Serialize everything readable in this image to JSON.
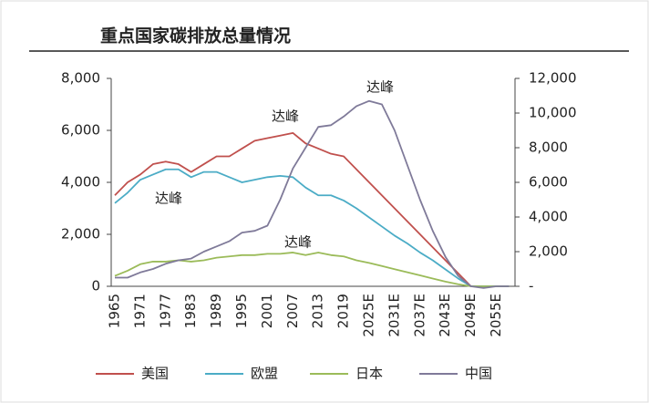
{
  "chart_data": {
    "type": "line",
    "title": "重点国家碳排放总量情况",
    "categories": [
      "1965",
      null,
      "1971",
      null,
      "1977",
      null,
      "1983",
      null,
      "1989",
      null,
      "1995",
      null,
      "2001",
      null,
      "2007",
      null,
      "2013",
      null,
      "2019",
      null,
      "2025E",
      null,
      "2031E",
      null,
      "2037E",
      null,
      "2043E",
      null,
      "2049E",
      null,
      "2055E",
      null
    ],
    "series": [
      {
        "name": "美国",
        "color": "#c0504d",
        "values": [
          3500,
          4000,
          4300,
          4700,
          4800,
          4700,
          4400,
          4700,
          5000,
          5000,
          5300,
          5600,
          5700,
          5800,
          5900,
          5500,
          5300,
          5100,
          5000,
          4500,
          4000,
          3500,
          3000,
          2500,
          2000,
          1500,
          1000,
          500,
          0,
          0,
          0,
          0
        ]
      },
      {
        "name": "欧盟",
        "color": "#4bacc6",
        "values": [
          3200,
          3600,
          4100,
          4300,
          4500,
          4500,
          4200,
          4400,
          4400,
          4200,
          4000,
          4100,
          4200,
          4250,
          4200,
          3800,
          3500,
          3500,
          3300,
          3000,
          2650,
          2300,
          1950,
          1650,
          1300,
          1000,
          650,
          300,
          0,
          0,
          0,
          0
        ]
      },
      {
        "name": "日本",
        "color": "#9bbb59",
        "values": [
          400,
          600,
          850,
          950,
          950,
          1000,
          950,
          1000,
          1100,
          1150,
          1200,
          1200,
          1250,
          1250,
          1300,
          1200,
          1300,
          1200,
          1150,
          1000,
          900,
          780,
          660,
          540,
          420,
          300,
          180,
          80,
          0,
          0,
          0,
          0
        ]
      },
      {
        "name": "中国",
        "color": "#7f7a99",
        "axis": "y2",
        "values": [
          500,
          500,
          800,
          1000,
          1300,
          1500,
          1600,
          2000,
          2300,
          2600,
          3100,
          3200,
          3500,
          5000,
          6800,
          8000,
          9200,
          9300,
          9800,
          10400,
          10700,
          10500,
          9000,
          7000,
          5000,
          3200,
          1700,
          600,
          0,
          -100,
          0,
          0
        ]
      }
    ],
    "ylim": [
      0,
      8000
    ],
    "yticks": [
      0,
      {
        "value": 2000,
        "label": "2,000"
      },
      {
        "value": 4000,
        "label": "4,000"
      },
      {
        "value": 6000,
        "label": "6,000"
      },
      {
        "value": 8000,
        "label": "8,000"
      }
    ],
    "y2lim": [
      0,
      12000
    ],
    "y2ticks": [
      {
        "value": 0,
        "label": "-"
      },
      {
        "value": 2000,
        "label": "2,000"
      },
      {
        "value": 4000,
        "label": "4,000"
      },
      {
        "value": 6000,
        "label": "6,000"
      },
      {
        "value": 8000,
        "label": "8,000"
      },
      {
        "value": 10000,
        "label": "10,000"
      },
      {
        "value": 12000,
        "label": "12,000"
      }
    ],
    "annotations": [
      "达峰",
      "达峰",
      "达峰",
      "达峰"
    ],
    "legend": "bottom"
  }
}
